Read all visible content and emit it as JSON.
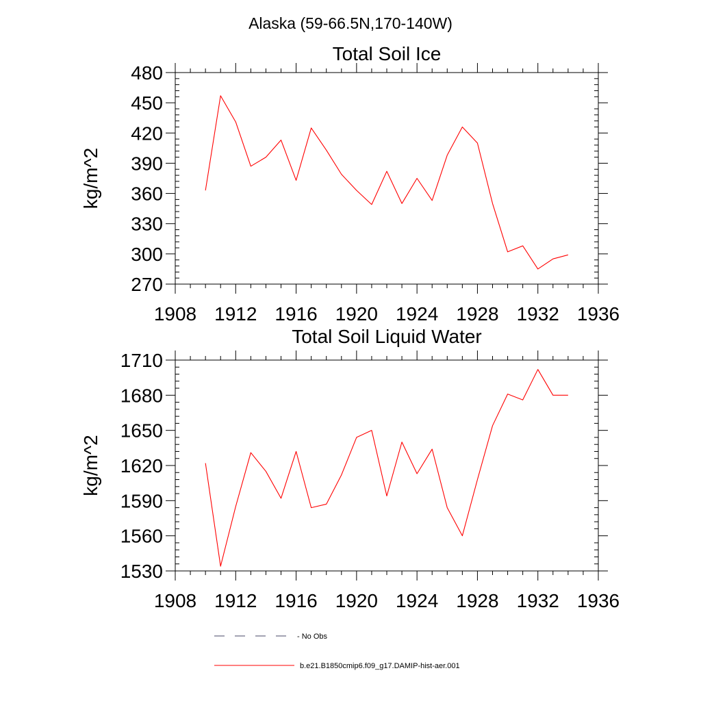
{
  "figure": {
    "title": "Alaska (59-66.5N,170-140W)"
  },
  "chart_data": [
    {
      "type": "line",
      "title": "Total Soil Ice",
      "xlabel": "",
      "ylabel": "kg/m^2",
      "xlim": [
        1908,
        1936
      ],
      "ylim": [
        270,
        480
      ],
      "xticks": [
        1908,
        1912,
        1916,
        1920,
        1924,
        1928,
        1932,
        1936
      ],
      "yticks": [
        270,
        300,
        330,
        360,
        390,
        420,
        450,
        480
      ],
      "x": [
        1910,
        1911,
        1912,
        1913,
        1914,
        1915,
        1916,
        1917,
        1918,
        1919,
        1920,
        1921,
        1922,
        1923,
        1924,
        1925,
        1926,
        1927,
        1928,
        1929,
        1930,
        1931,
        1932,
        1933,
        1934
      ],
      "series": [
        {
          "name": "b.e21.B1850cmip6.f09_g17.DAMIP-hist-aer.001",
          "color": "#ff0000",
          "values": [
            363,
            457,
            431,
            387,
            396,
            413,
            373,
            425,
            403,
            379,
            363,
            349,
            382,
            350,
            375,
            353,
            398,
            426,
            410,
            350,
            302,
            308,
            285,
            295,
            299
          ]
        }
      ]
    },
    {
      "type": "line",
      "title": "Total Soil Liquid Water",
      "xlabel": "",
      "ylabel": "kg/m^2",
      "xlim": [
        1908,
        1936
      ],
      "ylim": [
        1530,
        1710
      ],
      "xticks": [
        1908,
        1912,
        1916,
        1920,
        1924,
        1928,
        1932,
        1936
      ],
      "yticks": [
        1530,
        1560,
        1590,
        1620,
        1650,
        1680,
        1710
      ],
      "x": [
        1910,
        1911,
        1912,
        1913,
        1914,
        1915,
        1916,
        1917,
        1918,
        1919,
        1920,
        1921,
        1922,
        1923,
        1924,
        1925,
        1926,
        1927,
        1928,
        1929,
        1930,
        1931,
        1932,
        1933,
        1934
      ],
      "series": [
        {
          "name": "b.e21.B1850cmip6.f09_g17.DAMIP-hist-aer.001",
          "color": "#ff0000",
          "values": [
            1622,
            1534,
            1585,
            1631,
            1615,
            1592,
            1632,
            1584,
            1587,
            1612,
            1644,
            1650,
            1594,
            1640,
            1613,
            1634,
            1584,
            1560,
            1608,
            1654,
            1681,
            1676,
            1702,
            1680,
            1680
          ]
        }
      ]
    }
  ],
  "legend": {
    "placement": "bottom",
    "entries": [
      {
        "label": "No Obs",
        "color": "#444466",
        "style": "dashed"
      },
      {
        "label": "b.e21.B1850cmip6.f09_g17.DAMIP-hist-aer.001",
        "color": "#ff0000",
        "style": "solid"
      }
    ]
  }
}
